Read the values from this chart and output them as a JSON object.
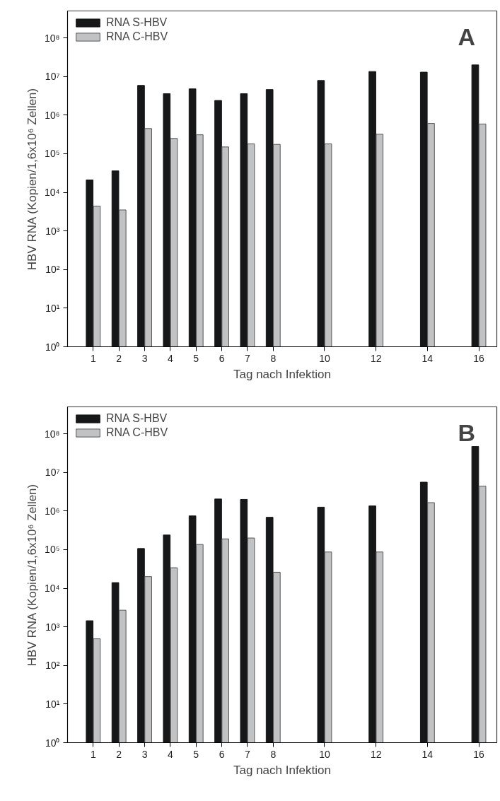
{
  "chart_data": [
    {
      "type": "bar",
      "x": [
        1,
        2,
        3,
        4,
        5,
        6,
        7,
        8,
        10,
        12,
        14,
        16
      ],
      "xlabel": "Tag nach Infektion",
      "ylabel": "HBV RNA (Kopien/1,6x10⁶ Zellen)",
      "log": "y",
      "legend": "top left",
      "grid": false,
      "annotations": [
        "A"
      ],
      "xlim": [
        0,
        16.7
      ],
      "xticks": [
        1,
        2,
        3,
        4,
        5,
        6,
        7,
        8,
        10,
        12,
        14,
        16
      ],
      "ylim": [
        1,
        500000000
      ],
      "yticks": [
        {
          "value": 1,
          "label": "10⁰"
        },
        {
          "value": 10,
          "label": "10¹"
        },
        {
          "value": 100,
          "label": "10²"
        },
        {
          "value": 1000,
          "label": "10³"
        },
        {
          "value": 10000,
          "label": "10⁴"
        },
        {
          "value": 100000,
          "label": "10⁵"
        },
        {
          "value": 1000000,
          "label": "10⁶"
        },
        {
          "value": 10000000,
          "label": "10⁷"
        },
        {
          "value": 100000000,
          "label": "10⁸"
        }
      ],
      "series": [
        {
          "name": "RNA S-HBV",
          "color": "#151718",
          "values": [
            21000,
            36000,
            5900000,
            3600000,
            4800000,
            2400000,
            3600000,
            4600000,
            7900000,
            13500000,
            13000000,
            20000000
          ]
        },
        {
          "name": "RNA C-HBV",
          "color": "#c0c2c4",
          "values": [
            4400,
            3500,
            450000,
            250000,
            310000,
            150000,
            180000,
            175000,
            180000,
            320000,
            610000,
            590000
          ]
        }
      ]
    },
    {
      "type": "bar",
      "x": [
        1,
        2,
        3,
        4,
        5,
        6,
        7,
        8,
        10,
        12,
        14,
        16
      ],
      "xlabel": "Tag nach Infektion",
      "ylabel": "HBV RNA (Kopien/1,6x10⁶ Zellen)",
      "log": "y",
      "legend": "top left",
      "grid": false,
      "annotations": [
        "B"
      ],
      "xlim": [
        0,
        16.7
      ],
      "xticks": [
        1,
        2,
        3,
        4,
        5,
        6,
        7,
        8,
        10,
        12,
        14,
        16
      ],
      "ylim": [
        1,
        500000000
      ],
      "yticks": [
        {
          "value": 1,
          "label": "10⁰"
        },
        {
          "value": 10,
          "label": "10¹"
        },
        {
          "value": 100,
          "label": "10²"
        },
        {
          "value": 1000,
          "label": "10³"
        },
        {
          "value": 10000,
          "label": "10⁴"
        },
        {
          "value": 100000,
          "label": "10⁵"
        },
        {
          "value": 1000000,
          "label": "10⁶"
        },
        {
          "value": 10000000,
          "label": "10⁷"
        },
        {
          "value": 100000000,
          "label": "10⁸"
        }
      ],
      "series": [
        {
          "name": "RNA S-HBV",
          "color": "#151718",
          "values": [
            1440,
            14000,
            107000,
            240000,
            750000,
            2050000,
            2000000,
            690000,
            1260000,
            1360000,
            5600000,
            47000000
          ]
        },
        {
          "name": "RNA C-HBV",
          "color": "#c0c2c4",
          "values": [
            490,
            2700,
            20000,
            34000,
            136000,
            190000,
            200000,
            26000,
            87000,
            87000,
            1650000,
            4400000
          ]
        }
      ]
    }
  ]
}
